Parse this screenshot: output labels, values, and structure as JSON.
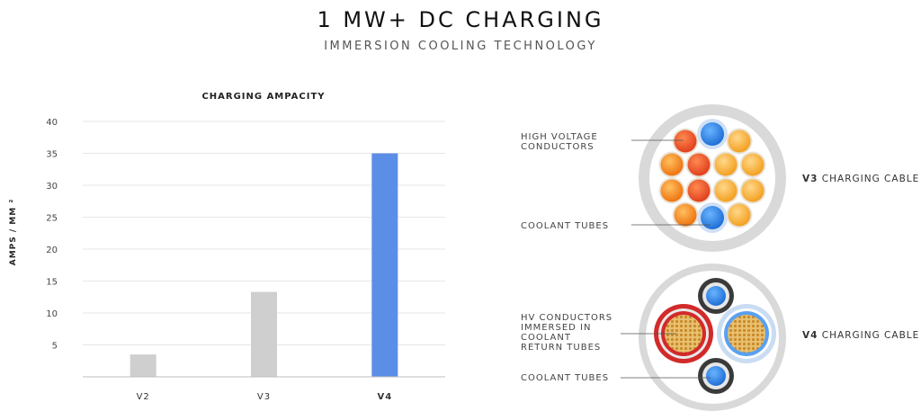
{
  "header": {
    "title": "1 MW+ DC CHARGING",
    "subtitle": "IMMERSION COOLING TECHNOLOGY"
  },
  "chart_data": {
    "type": "bar",
    "title": "CHARGING AMPACITY",
    "xlabel": "",
    "ylabel": "AMPS / MM ²",
    "categories": [
      "V2",
      "V3",
      "V4"
    ],
    "values": [
      3.5,
      13.3,
      35
    ],
    "ylim": [
      0,
      40
    ],
    "yticks": [
      5,
      10,
      15,
      20,
      25,
      30,
      35,
      40
    ],
    "grid": true,
    "colors": [
      "#cfcfcf",
      "#cfcfcf",
      "#5b8ee6"
    ]
  },
  "diagram": {
    "v3": {
      "name_bold": "V3",
      "name_rest": " CHARGING CABLE",
      "label_conductors": [
        "HIGH VOLTAGE",
        "CONDUCTORS"
      ],
      "label_coolant": "COOLANT TUBES"
    },
    "v4": {
      "name_bold": "V4",
      "name_rest": " CHARGING CABLE",
      "label_conductors": [
        "HV CONDUCTORS",
        "IMMERSED IN",
        "COOLANT",
        "RETURN TUBES"
      ],
      "label_coolant": "COOLANT TUBES"
    },
    "colors": {
      "conductor_dark": "#f07a10",
      "conductor_red": "#e84a2a",
      "conductor_light": "#f7a92a",
      "coolant_blue": "#2f86e8",
      "jacket": "#d9d9d9",
      "return_red": "#d22a2a"
    }
  }
}
